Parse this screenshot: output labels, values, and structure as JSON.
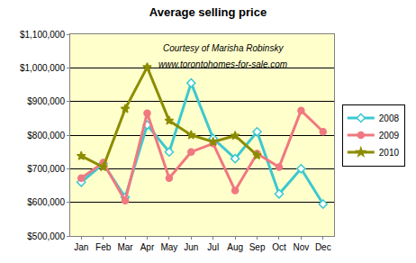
{
  "chart_data": {
    "type": "line",
    "title": "Average selling price",
    "annotations": [
      "Courtesy of Marisha Robinsky",
      "www.torontohomes-for-sale.com"
    ],
    "categories": [
      "Jan",
      "Feb",
      "Mar",
      "Apr",
      "May",
      "Jun",
      "Jul",
      "Aug",
      "Sep",
      "Oct",
      "Nov",
      "Dec"
    ],
    "series": [
      {
        "name": "2008",
        "color": "#3cc8d0",
        "marker": "diamond",
        "values": [
          660000,
          715000,
          615000,
          830000,
          750000,
          955000,
          790000,
          730000,
          810000,
          625000,
          700000,
          595000
        ]
      },
      {
        "name": "2009",
        "color": "#f07880",
        "marker": "circle",
        "values": [
          672000,
          718000,
          605000,
          865000,
          672000,
          750000,
          775000,
          635000,
          745000,
          705000,
          873000,
          810000
        ]
      },
      {
        "name": "2010",
        "color": "#8c8c00",
        "marker": "star",
        "values": [
          738000,
          705000,
          878000,
          1002000,
          843000,
          800000,
          780000,
          798000,
          740000,
          null,
          null,
          null
        ]
      }
    ],
    "ylim": [
      500000,
      1100000
    ],
    "yticks": [
      {
        "value": 500000,
        "label": "$500,000"
      },
      {
        "value": 600000,
        "label": "$600,000"
      },
      {
        "value": 700000,
        "label": "$700,000"
      },
      {
        "value": 800000,
        "label": "$800,000"
      },
      {
        "value": 900000,
        "label": "$900,000"
      },
      {
        "value": 1000000,
        "label": "$1,000,000"
      },
      {
        "value": 1100000,
        "label": "$1,100,000"
      }
    ],
    "grid": true,
    "legend": "right"
  }
}
